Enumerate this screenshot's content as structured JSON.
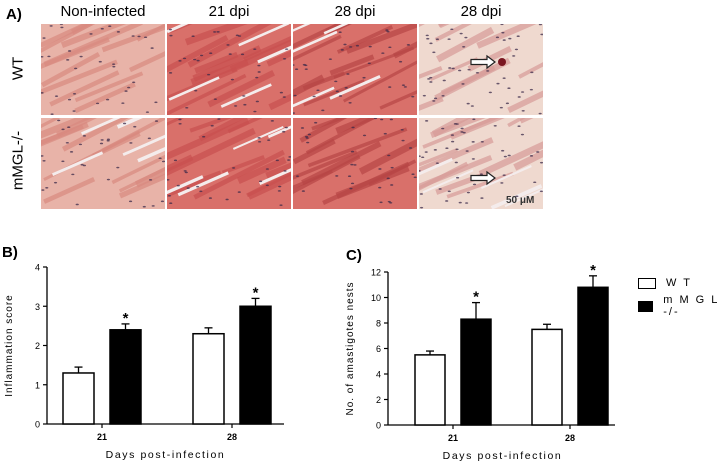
{
  "panel_a": {
    "letter": "A)",
    "columns": [
      "Non-infected",
      "21 dpi",
      "28 dpi",
      "28 dpi"
    ],
    "rows": [
      "WT",
      "mMGL-/-"
    ],
    "scale_bar": "50 μM",
    "tissue_colors": {
      "light": "#e8b3a8",
      "dense": "#d9706a",
      "pale": "#efd9cf",
      "nuclei": "#3b2a4a"
    }
  },
  "panel_b": {
    "letter": "B)"
  },
  "panel_c": {
    "letter": "C)"
  },
  "legend": {
    "items": [
      {
        "label": "W T",
        "fill": "#ffffff"
      },
      {
        "label": "m M G L -/-",
        "fill": "#000000"
      }
    ]
  },
  "chart_data": [
    {
      "type": "bar",
      "categories": [
        "21",
        "28"
      ],
      "series": [
        {
          "name": "W T",
          "values": [
            1.3,
            2.3
          ],
          "errors": [
            0.15,
            0.15
          ],
          "fill": "#ffffff"
        },
        {
          "name": "m M G L -/-",
          "values": [
            2.4,
            3.0
          ],
          "errors": [
            0.15,
            0.2
          ],
          "fill": "#000000"
        }
      ],
      "significance": [
        "",
        "*",
        "",
        "*"
      ],
      "xlabel": "Days post-infection",
      "ylabel": "Inflammation score",
      "ylim": [
        0,
        4
      ],
      "yticks": [
        "0",
        "1",
        "2",
        "3",
        "4"
      ]
    },
    {
      "type": "bar",
      "categories": [
        "21",
        "28"
      ],
      "series": [
        {
          "name": "W T",
          "values": [
            5.5,
            7.5
          ],
          "errors": [
            0.3,
            0.4
          ],
          "fill": "#ffffff"
        },
        {
          "name": "m M G L -/-",
          "values": [
            8.3,
            10.8
          ],
          "errors": [
            1.3,
            0.9
          ],
          "fill": "#000000"
        }
      ],
      "significance": [
        "",
        "*",
        "",
        "*"
      ],
      "xlabel": "Days post-infection",
      "ylabel": "No. of amastigotes nests",
      "ylim": [
        0,
        12
      ],
      "yticks": [
        "0",
        "2",
        "4",
        "6",
        "8",
        "10",
        "12"
      ]
    }
  ]
}
